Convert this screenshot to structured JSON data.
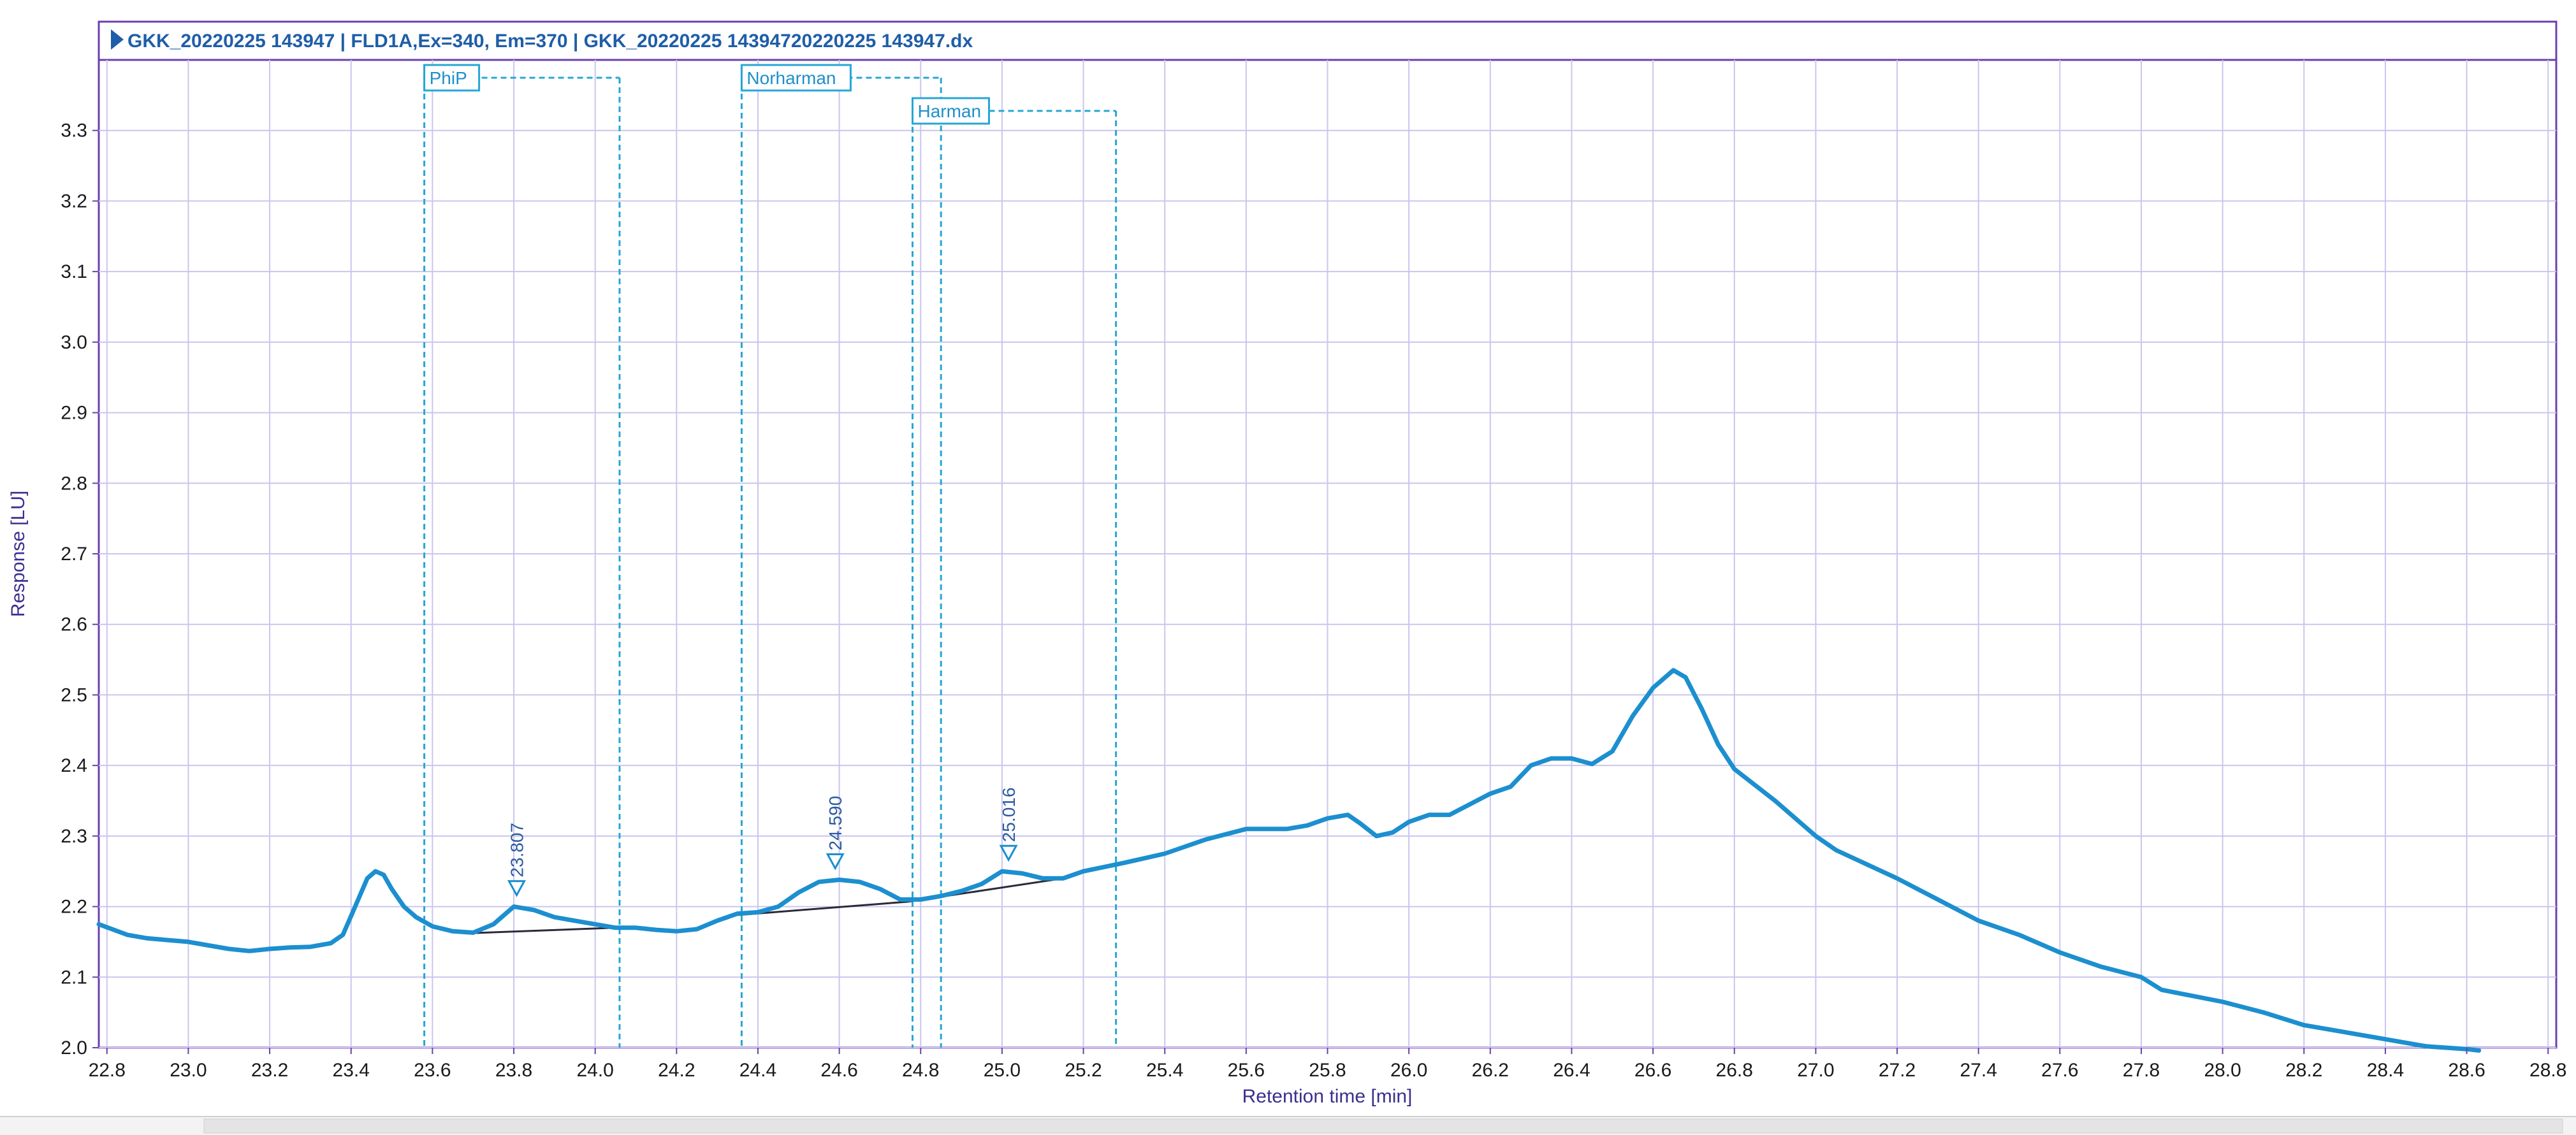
{
  "window": {
    "title": "GKK_20220225 143947 | FLD1A,Ex=340, Em=370 | GKK_20220225 14394720220225 143947.dx",
    "title_icon": "play-triangle-icon"
  },
  "chart_data": {
    "type": "line",
    "title": "GKK_20220225 143947 | FLD1A,Ex=340, Em=370 | GKK_20220225 14394720220225 143947.dx",
    "xlabel": "Retention time [min]",
    "ylabel": "Response [LU]",
    "xlim": [
      22.78,
      28.82
    ],
    "ylim": [
      2.0,
      3.4
    ],
    "grid": true,
    "x_ticks": [
      22.8,
      23.0,
      23.2,
      23.4,
      23.6,
      23.8,
      24.0,
      24.2,
      24.4,
      24.6,
      24.8,
      25.0,
      25.2,
      25.4,
      25.6,
      25.8,
      26.0,
      26.2,
      26.4,
      26.6,
      26.8,
      27.0,
      27.2,
      27.4,
      27.6,
      27.8,
      28.0,
      28.2,
      28.4,
      28.6,
      28.8
    ],
    "x_tick_labels": [
      "22.8",
      "23.0",
      "23.2",
      "23.4",
      "23.6",
      "23.8",
      "24.0",
      "24.2",
      "24.4",
      "24.6",
      "24.8",
      "25.0",
      "25.2",
      "25.4",
      "25.6",
      "25.8",
      "26.0",
      "26.2",
      "26.4",
      "26.6",
      "26.8",
      "27.0",
      "27.2",
      "27.4",
      "27.6",
      "27.8",
      "28.0",
      "28.2",
      "28.4",
      "28.6",
      "28.8"
    ],
    "y_ticks": [
      2.0,
      2.1,
      2.2,
      2.3,
      2.4,
      2.5,
      2.6,
      2.7,
      2.8,
      2.9,
      3.0,
      3.1,
      3.2,
      3.3
    ],
    "y_tick_labels": [
      "2.0",
      "2.1",
      "2.2",
      "2.3",
      "2.4",
      "2.5",
      "2.6",
      "2.7",
      "2.8",
      "2.9",
      "3.0",
      "3.1",
      "3.2",
      "3.3"
    ],
    "series": [
      {
        "color": "#1c8fcf",
        "points": [
          [
            22.78,
            2.175
          ],
          [
            22.85,
            2.16
          ],
          [
            22.9,
            2.155
          ],
          [
            23.0,
            2.15
          ],
          [
            23.05,
            2.145
          ],
          [
            23.1,
            2.14
          ],
          [
            23.15,
            2.137
          ],
          [
            23.2,
            2.14
          ],
          [
            23.25,
            2.142
          ],
          [
            23.3,
            2.143
          ],
          [
            23.35,
            2.148
          ],
          [
            23.38,
            2.16
          ],
          [
            23.41,
            2.2
          ],
          [
            23.44,
            2.24
          ],
          [
            23.46,
            2.25
          ],
          [
            23.48,
            2.245
          ],
          [
            23.5,
            2.225
          ],
          [
            23.53,
            2.2
          ],
          [
            23.56,
            2.185
          ],
          [
            23.6,
            2.172
          ],
          [
            23.65,
            2.165
          ],
          [
            23.7,
            2.163
          ],
          [
            23.75,
            2.175
          ],
          [
            23.8,
            2.2
          ],
          [
            23.85,
            2.195
          ],
          [
            23.9,
            2.185
          ],
          [
            24.0,
            2.175
          ],
          [
            24.05,
            2.17
          ],
          [
            24.1,
            2.17
          ],
          [
            24.15,
            2.167
          ],
          [
            24.2,
            2.165
          ],
          [
            24.25,
            2.168
          ],
          [
            24.3,
            2.18
          ],
          [
            24.35,
            2.19
          ],
          [
            24.4,
            2.192
          ],
          [
            24.45,
            2.2
          ],
          [
            24.5,
            2.22
          ],
          [
            24.55,
            2.235
          ],
          [
            24.6,
            2.238
          ],
          [
            24.65,
            2.235
          ],
          [
            24.7,
            2.225
          ],
          [
            24.75,
            2.21
          ],
          [
            24.8,
            2.21
          ],
          [
            24.85,
            2.215
          ],
          [
            24.9,
            2.222
          ],
          [
            24.95,
            2.232
          ],
          [
            25.0,
            2.25
          ],
          [
            25.05,
            2.247
          ],
          [
            25.1,
            2.24
          ],
          [
            25.15,
            2.24
          ],
          [
            25.2,
            2.25
          ],
          [
            25.3,
            2.262
          ],
          [
            25.4,
            2.275
          ],
          [
            25.5,
            2.295
          ],
          [
            25.6,
            2.31
          ],
          [
            25.7,
            2.31
          ],
          [
            25.75,
            2.315
          ],
          [
            25.8,
            2.325
          ],
          [
            25.85,
            2.33
          ],
          [
            25.88,
            2.318
          ],
          [
            25.92,
            2.3
          ],
          [
            25.96,
            2.305
          ],
          [
            26.0,
            2.32
          ],
          [
            26.05,
            2.33
          ],
          [
            26.1,
            2.33
          ],
          [
            26.15,
            2.345
          ],
          [
            26.2,
            2.36
          ],
          [
            26.25,
            2.37
          ],
          [
            26.3,
            2.4
          ],
          [
            26.35,
            2.41
          ],
          [
            26.4,
            2.41
          ],
          [
            26.45,
            2.402
          ],
          [
            26.5,
            2.42
          ],
          [
            26.55,
            2.47
          ],
          [
            26.6,
            2.51
          ],
          [
            26.65,
            2.535
          ],
          [
            26.68,
            2.525
          ],
          [
            26.72,
            2.48
          ],
          [
            26.76,
            2.43
          ],
          [
            26.8,
            2.395
          ],
          [
            26.9,
            2.35
          ],
          [
            27.0,
            2.3
          ],
          [
            27.05,
            2.28
          ],
          [
            27.2,
            2.24
          ],
          [
            27.3,
            2.21
          ],
          [
            27.4,
            2.18
          ],
          [
            27.5,
            2.16
          ],
          [
            27.6,
            2.135
          ],
          [
            27.7,
            2.115
          ],
          [
            27.8,
            2.1
          ],
          [
            27.85,
            2.082
          ],
          [
            28.0,
            2.065
          ],
          [
            28.1,
            2.05
          ],
          [
            28.2,
            2.032
          ],
          [
            28.3,
            2.022
          ],
          [
            28.4,
            2.012
          ],
          [
            28.5,
            2.002
          ],
          [
            28.6,
            1.998
          ],
          [
            28.63,
            1.996
          ]
        ]
      }
    ],
    "baselines": [
      [
        [
          23.68,
          2.162
        ],
        [
          24.05,
          2.17
        ]
      ],
      [
        [
          24.05,
          2.17
        ],
        [
          24.2,
          2.165
        ]
      ],
      [
        [
          24.35,
          2.188
        ],
        [
          24.77,
          2.207
        ]
      ],
      [
        [
          24.77,
          2.207
        ],
        [
          25.15,
          2.24
        ]
      ]
    ],
    "peak_markers": [
      {
        "x": 23.807,
        "y": 2.2,
        "label": "23.807"
      },
      {
        "x": 24.59,
        "y": 2.238,
        "label": "24.590"
      },
      {
        "x": 25.016,
        "y": 2.25,
        "label": "25.016"
      }
    ],
    "retention_windows": [
      {
        "name": "PhiP",
        "start": 23.58,
        "end": 24.06
      },
      {
        "name": "Norharman",
        "start": 24.36,
        "end": 24.85
      },
      {
        "name": "Harman",
        "start": 24.78,
        "end": 25.28
      }
    ]
  }
}
